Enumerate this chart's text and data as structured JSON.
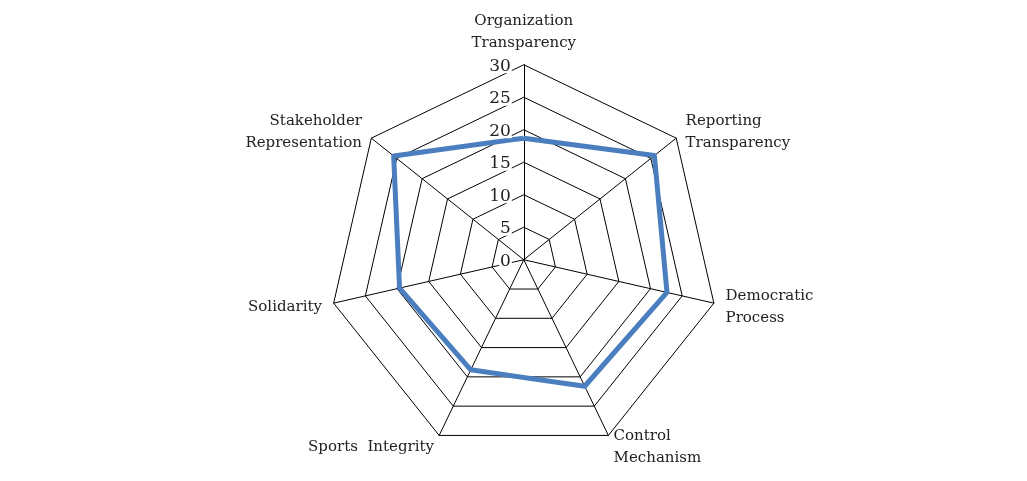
{
  "chart_data": {
    "type": "radar",
    "categories": [
      "Organization\nTransparency",
      "Reporting\nTransparency",
      "Democratic\nProcess",
      "Control\nMechanism",
      "Sports  Integrity",
      "Solidarity",
      "Stakeholder\nRepresentation"
    ],
    "series": [
      {
        "color": "#4a7ebf",
        "values": [
          18.7,
          25.7,
          22.6,
          21.6,
          18.8,
          19.6,
          25.6
        ]
      }
    ],
    "ylim": [
      0,
      30
    ],
    "yticks": [
      0,
      5,
      10,
      15,
      20,
      25,
      30
    ]
  }
}
